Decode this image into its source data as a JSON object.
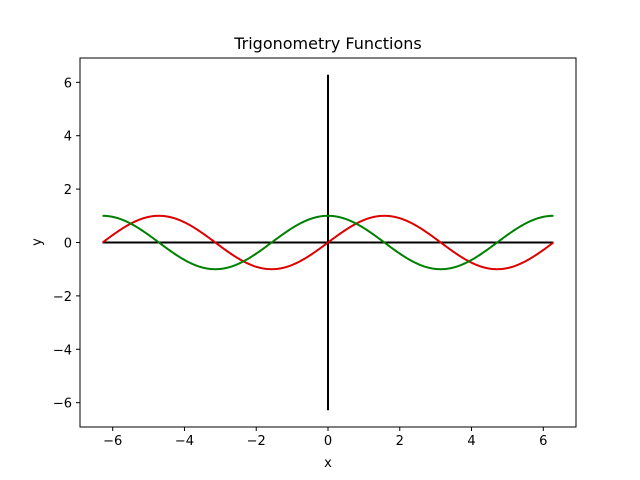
{
  "chart_data": {
    "type": "line",
    "title": "Trigonometry Functions",
    "xlabel": "x",
    "ylabel": "y",
    "xlim": [
      -6.9115,
      6.9115
    ],
    "ylim": [
      -6.9115,
      6.9115
    ],
    "x_ticks": [
      -6,
      -4,
      -2,
      0,
      2,
      4,
      6
    ],
    "y_ticks": [
      -6,
      -4,
      -2,
      0,
      2,
      4,
      6
    ],
    "x_tick_labels": [
      "−6",
      "−4",
      "−2",
      "0",
      "2",
      "4",
      "6"
    ],
    "y_tick_labels": [
      "−6",
      "−4",
      "−2",
      "0",
      "2",
      "4",
      "6"
    ],
    "grid": false,
    "x_range": [
      -6.2832,
      6.2832
    ],
    "series": [
      {
        "function": "sin",
        "color": "#dd0000",
        "points": [
          [
            -6.2832,
            0.0
          ],
          [
            -5.969,
            0.309
          ],
          [
            -5.6549,
            0.5878
          ],
          [
            -5.3407,
            0.809
          ],
          [
            -5.0265,
            0.9511
          ],
          [
            -4.7124,
            1.0
          ],
          [
            -4.3982,
            0.9511
          ],
          [
            -4.0841,
            0.809
          ],
          [
            -3.7699,
            0.5878
          ],
          [
            -3.4558,
            0.309
          ],
          [
            -3.1416,
            0.0
          ],
          [
            -2.8274,
            -0.309
          ],
          [
            -2.5133,
            -0.5878
          ],
          [
            -2.1991,
            -0.809
          ],
          [
            -1.885,
            -0.9511
          ],
          [
            -1.5708,
            -1.0
          ],
          [
            -1.2566,
            -0.9511
          ],
          [
            -0.9425,
            -0.809
          ],
          [
            -0.6283,
            -0.5878
          ],
          [
            -0.3142,
            -0.309
          ],
          [
            0.0,
            0.0
          ],
          [
            0.3142,
            0.309
          ],
          [
            0.6283,
            0.5878
          ],
          [
            0.9425,
            0.809
          ],
          [
            1.2566,
            0.9511
          ],
          [
            1.5708,
            1.0
          ],
          [
            1.885,
            0.9511
          ],
          [
            2.1991,
            0.809
          ],
          [
            2.5133,
            0.5878
          ],
          [
            2.8274,
            0.309
          ],
          [
            3.1416,
            0.0
          ],
          [
            3.4558,
            -0.309
          ],
          [
            3.7699,
            -0.5878
          ],
          [
            4.0841,
            -0.809
          ],
          [
            4.3982,
            -0.9511
          ],
          [
            4.7124,
            -1.0
          ],
          [
            5.0265,
            -0.9511
          ],
          [
            5.3407,
            -0.809
          ],
          [
            5.6549,
            -0.5878
          ],
          [
            5.969,
            -0.309
          ],
          [
            6.2832,
            0.0
          ]
        ]
      },
      {
        "function": "cos",
        "color": "#008000",
        "points": [
          [
            -6.2832,
            1.0
          ],
          [
            -5.969,
            0.9511
          ],
          [
            -5.6549,
            0.809
          ],
          [
            -5.3407,
            0.5878
          ],
          [
            -5.0265,
            0.309
          ],
          [
            -4.7124,
            0.0
          ],
          [
            -4.3982,
            -0.309
          ],
          [
            -4.0841,
            -0.5878
          ],
          [
            -3.7699,
            -0.809
          ],
          [
            -3.4558,
            -0.9511
          ],
          [
            -3.1416,
            -1.0
          ],
          [
            -2.8274,
            -0.9511
          ],
          [
            -2.5133,
            -0.809
          ],
          [
            -2.1991,
            -0.5878
          ],
          [
            -1.885,
            -0.309
          ],
          [
            -1.5708,
            0.0
          ],
          [
            -1.2566,
            0.309
          ],
          [
            -0.9425,
            0.5878
          ],
          [
            -0.6283,
            0.809
          ],
          [
            -0.3142,
            0.9511
          ],
          [
            0.0,
            1.0
          ],
          [
            0.3142,
            0.9511
          ],
          [
            0.6283,
            0.809
          ],
          [
            0.9425,
            0.5878
          ],
          [
            1.2566,
            0.309
          ],
          [
            1.5708,
            0.0
          ],
          [
            1.885,
            -0.309
          ],
          [
            2.1991,
            -0.5878
          ],
          [
            2.5133,
            -0.809
          ],
          [
            2.8274,
            -0.9511
          ],
          [
            3.1416,
            -1.0
          ],
          [
            3.4558,
            -0.9511
          ],
          [
            3.7699,
            -0.809
          ],
          [
            4.0841,
            -0.5878
          ],
          [
            4.3982,
            -0.309
          ],
          [
            4.7124,
            0.0
          ],
          [
            5.0265,
            0.309
          ],
          [
            5.3407,
            0.5878
          ],
          [
            5.6549,
            0.809
          ],
          [
            5.969,
            0.9511
          ],
          [
            6.2832,
            1.0
          ]
        ]
      }
    ],
    "reference_lines": [
      {
        "orientation": "horizontal",
        "y": 0,
        "from": -6.2832,
        "to": 6.2832,
        "color": "#000000"
      },
      {
        "orientation": "vertical",
        "x": 0,
        "from": -6.2832,
        "to": 6.2832,
        "color": "#000000"
      }
    ]
  }
}
